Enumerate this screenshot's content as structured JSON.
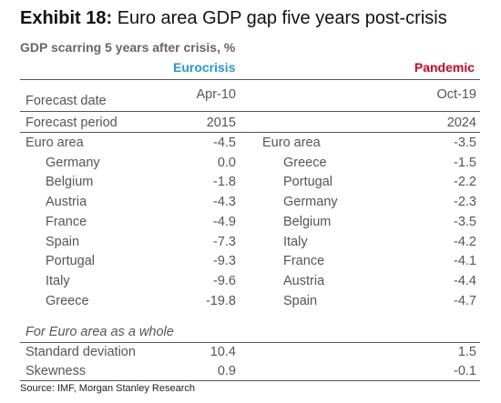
{
  "title": {
    "exhibit": "Exhibit 18:",
    "text": "Euro area GDP gap five years post-crisis"
  },
  "subtitle": "GDP scarring 5 years after crisis, %",
  "columns": {
    "left": {
      "label": "Eurocrisis",
      "color": "#1f9be0"
    },
    "right": {
      "label": "Pandemic",
      "color": "#e2001a"
    }
  },
  "meta": {
    "forecast_date": {
      "label": "Forecast date",
      "left": "Apr-10",
      "right": "Oct-19"
    },
    "forecast_period": {
      "label": "Forecast period",
      "left": "2015",
      "right": "2024"
    }
  },
  "left_rows": [
    {
      "country": "Euro area",
      "value": "-4.5"
    },
    {
      "country": "Germany",
      "value": "0.0"
    },
    {
      "country": "Belgium",
      "value": "-1.8"
    },
    {
      "country": "Austria",
      "value": "-4.3"
    },
    {
      "country": "France",
      "value": "-4.9"
    },
    {
      "country": "Spain",
      "value": "-7.3"
    },
    {
      "country": "Portugal",
      "value": "-9.3"
    },
    {
      "country": "Italy",
      "value": "-9.6"
    },
    {
      "country": "Greece",
      "value": "-19.8"
    }
  ],
  "right_rows": [
    {
      "country": "Euro area",
      "value": "-3.5"
    },
    {
      "country": "Greece",
      "value": "-1.5"
    },
    {
      "country": "Portugal",
      "value": "-2.2"
    },
    {
      "country": "Germany",
      "value": "-2.3"
    },
    {
      "country": "Belgium",
      "value": "-3.5"
    },
    {
      "country": "Italy",
      "value": "-4.2"
    },
    {
      "country": "France",
      "value": "-4.1"
    },
    {
      "country": "Austria",
      "value": "-4.4"
    },
    {
      "country": "Spain",
      "value": "-4.7"
    }
  ],
  "aggregate": {
    "heading": "For Euro area as a whole",
    "stdev": {
      "label": "Standard deviation",
      "left": "10.4",
      "right": "1.5"
    },
    "skewness": {
      "label": "Skewness",
      "left": "0.9",
      "right": "-0.1"
    }
  },
  "source": "Source: IMF, Morgan Stanley Research"
}
